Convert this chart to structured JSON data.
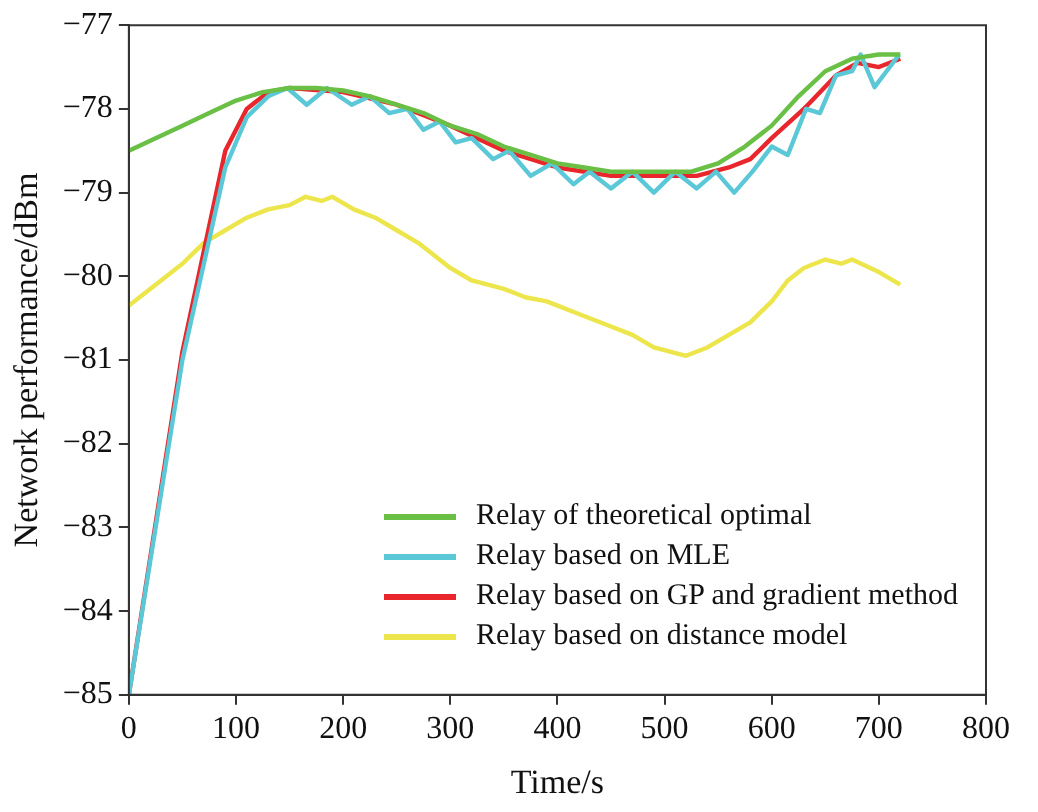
{
  "chart_data": {
    "type": "line",
    "xlabel": "Time/s",
    "ylabel": "Network performance/dBm",
    "xlim": [
      0,
      800
    ],
    "xticks": [
      0,
      100,
      200,
      300,
      400,
      500,
      600,
      700,
      800
    ],
    "ylim": [
      -85,
      -77
    ],
    "yticks": [
      {
        "value": -85,
        "label": "−85"
      },
      {
        "value": -84,
        "label": "−84"
      },
      {
        "value": -83,
        "label": "−83"
      },
      {
        "value": -82,
        "label": "−82"
      },
      {
        "value": -81,
        "label": "−81"
      },
      {
        "value": -80,
        "label": "−80"
      },
      {
        "value": -79,
        "label": "−79"
      },
      {
        "value": -78,
        "label": "−78"
      },
      {
        "value": -77,
        "label": "−77"
      }
    ],
    "grid": false,
    "legend": "bottom right",
    "marker": "none",
    "line_style": "solid",
    "series": [
      {
        "name": "Relay of theoretical optimal",
        "color": "#6abf45",
        "x": [
          0,
          25,
          50,
          75,
          100,
          125,
          150,
          175,
          200,
          225,
          250,
          275,
          300,
          325,
          350,
          375,
          400,
          425,
          450,
          475,
          500,
          525,
          550,
          575,
          600,
          625,
          650,
          675,
          700,
          720
        ],
        "values": [
          -78.5,
          -78.35,
          -78.2,
          -78.05,
          -77.9,
          -77.8,
          -77.75,
          -77.75,
          -77.78,
          -77.85,
          -77.95,
          -78.05,
          -78.2,
          -78.3,
          -78.45,
          -78.55,
          -78.65,
          -78.7,
          -78.75,
          -78.75,
          -78.75,
          -78.75,
          -78.65,
          -78.45,
          -78.2,
          -77.85,
          -77.55,
          -77.4,
          -77.35,
          -77.35
        ]
      },
      {
        "name": "Relay based on MLE",
        "color": "#5bc8d8",
        "x": [
          0,
          50,
          90,
          110,
          130,
          148,
          166,
          185,
          208,
          225,
          243,
          260,
          275,
          290,
          305,
          320,
          340,
          355,
          375,
          395,
          415,
          430,
          450,
          470,
          490,
          510,
          530,
          548,
          565,
          582,
          600,
          615,
          632,
          645,
          660,
          675,
          683,
          696,
          719
        ],
        "values": [
          -85,
          -81,
          -78.7,
          -78.1,
          -77.85,
          -77.75,
          -77.95,
          -77.75,
          -77.95,
          -77.85,
          -78.05,
          -78.0,
          -78.25,
          -78.15,
          -78.4,
          -78.35,
          -78.6,
          -78.5,
          -78.8,
          -78.65,
          -78.9,
          -78.75,
          -78.95,
          -78.75,
          -79.0,
          -78.75,
          -78.95,
          -78.75,
          -79.0,
          -78.75,
          -78.45,
          -78.55,
          -78.0,
          -78.05,
          -77.6,
          -77.55,
          -77.35,
          -77.74,
          -77.35
        ]
      },
      {
        "name": "Relay based on GP and gradient method",
        "color": "#e8262b",
        "x": [
          0,
          50,
          90,
          110,
          130,
          150,
          200,
          250,
          300,
          350,
          400,
          450,
          500,
          530,
          560,
          580,
          600,
          630,
          660,
          680,
          700,
          720
        ],
        "values": [
          -85,
          -80.9,
          -78.5,
          -78.0,
          -77.8,
          -77.75,
          -77.8,
          -77.95,
          -78.2,
          -78.5,
          -78.7,
          -78.8,
          -78.8,
          -78.8,
          -78.7,
          -78.6,
          -78.35,
          -78.0,
          -77.6,
          -77.45,
          -77.5,
          -77.4
        ]
      },
      {
        "name": "Relay based on distance model",
        "color": "#ece64c",
        "x": [
          0,
          10,
          25,
          50,
          70,
          90,
          110,
          130,
          150,
          165,
          180,
          190,
          210,
          230,
          250,
          270,
          300,
          320,
          350,
          370,
          390,
          420,
          450,
          470,
          490,
          520,
          540,
          560,
          580,
          600,
          615,
          630,
          650,
          665,
          675,
          700,
          720
        ],
        "values": [
          -80.35,
          -80.25,
          -80.1,
          -79.85,
          -79.6,
          -79.45,
          -79.3,
          -79.2,
          -79.15,
          -79.05,
          -79.1,
          -79.05,
          -79.2,
          -79.3,
          -79.45,
          -79.6,
          -79.9,
          -80.05,
          -80.15,
          -80.25,
          -80.3,
          -80.45,
          -80.6,
          -80.7,
          -80.85,
          -80.95,
          -80.85,
          -80.7,
          -80.55,
          -80.3,
          -80.05,
          -79.9,
          -79.8,
          -79.85,
          -79.8,
          -79.95,
          -80.1
        ]
      }
    ]
  }
}
